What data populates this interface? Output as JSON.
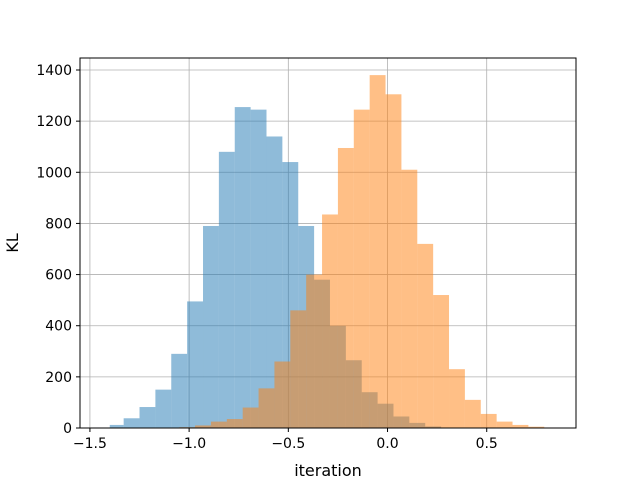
{
  "chart_data": {
    "type": "histogram",
    "title": "",
    "xlabel": "iteration",
    "ylabel": "KL",
    "xlim": [
      -1.55,
      0.95
    ],
    "ylim": [
      0,
      1400
    ],
    "xticks": [
      -1.5,
      -1.0,
      -0.5,
      0.0,
      0.5
    ],
    "xtick_labels": [
      "−1.5",
      "−1.0",
      "−0.5",
      "0.0",
      "0.5"
    ],
    "yticks": [
      0,
      200,
      400,
      600,
      800,
      1000,
      1200,
      1400
    ],
    "ytick_labels": [
      "0",
      "200",
      "400",
      "600",
      "800",
      "1000",
      "1200",
      "1400"
    ],
    "grid": true,
    "legend": "none",
    "series": [
      {
        "color": "#1f77b4",
        "alpha": 0.5,
        "bins": [
          {
            "x0": -1.48,
            "x1": -1.4,
            "value": 2
          },
          {
            "x0": -1.4,
            "x1": -1.33,
            "value": 12
          },
          {
            "x0": -1.33,
            "x1": -1.25,
            "value": 38
          },
          {
            "x0": -1.25,
            "x1": -1.17,
            "value": 82
          },
          {
            "x0": -1.17,
            "x1": -1.09,
            "value": 150
          },
          {
            "x0": -1.09,
            "x1": -1.01,
            "value": 290
          },
          {
            "x0": -1.01,
            "x1": -0.93,
            "value": 495
          },
          {
            "x0": -0.93,
            "x1": -0.85,
            "value": 790
          },
          {
            "x0": -0.85,
            "x1": -0.77,
            "value": 1080
          },
          {
            "x0": -0.77,
            "x1": -0.69,
            "value": 1255
          },
          {
            "x0": -0.69,
            "x1": -0.61,
            "value": 1245
          },
          {
            "x0": -0.61,
            "x1": -0.53,
            "value": 1140
          },
          {
            "x0": -0.53,
            "x1": -0.45,
            "value": 1040
          },
          {
            "x0": -0.45,
            "x1": -0.37,
            "value": 790
          },
          {
            "x0": -0.37,
            "x1": -0.29,
            "value": 580
          },
          {
            "x0": -0.29,
            "x1": -0.21,
            "value": 400
          },
          {
            "x0": -0.21,
            "x1": -0.13,
            "value": 265
          },
          {
            "x0": -0.13,
            "x1": -0.05,
            "value": 140
          },
          {
            "x0": -0.05,
            "x1": 0.03,
            "value": 95
          },
          {
            "x0": 0.03,
            "x1": 0.11,
            "value": 45
          },
          {
            "x0": 0.11,
            "x1": 0.19,
            "value": 20
          },
          {
            "x0": 0.19,
            "x1": 0.27,
            "value": 6
          }
        ]
      },
      {
        "color": "#ff7f0e",
        "alpha": 0.5,
        "bins": [
          {
            "x0": -1.05,
            "x1": -0.97,
            "value": 3
          },
          {
            "x0": -0.97,
            "x1": -0.89,
            "value": 10
          },
          {
            "x0": -0.89,
            "x1": -0.81,
            "value": 25
          },
          {
            "x0": -0.81,
            "x1": -0.73,
            "value": 35
          },
          {
            "x0": -0.73,
            "x1": -0.65,
            "value": 80
          },
          {
            "x0": -0.65,
            "x1": -0.57,
            "value": 155
          },
          {
            "x0": -0.57,
            "x1": -0.49,
            "value": 260
          },
          {
            "x0": -0.49,
            "x1": -0.41,
            "value": 460
          },
          {
            "x0": -0.41,
            "x1": -0.33,
            "value": 600
          },
          {
            "x0": -0.33,
            "x1": -0.25,
            "value": 835
          },
          {
            "x0": -0.25,
            "x1": -0.17,
            "value": 1095
          },
          {
            "x0": -0.17,
            "x1": -0.09,
            "value": 1245
          },
          {
            "x0": -0.09,
            "x1": -0.01,
            "value": 1380
          },
          {
            "x0": -0.01,
            "x1": 0.07,
            "value": 1305
          },
          {
            "x0": 0.07,
            "x1": 0.15,
            "value": 1010
          },
          {
            "x0": 0.15,
            "x1": 0.23,
            "value": 720
          },
          {
            "x0": 0.23,
            "x1": 0.31,
            "value": 520
          },
          {
            "x0": 0.31,
            "x1": 0.39,
            "value": 230
          },
          {
            "x0": 0.39,
            "x1": 0.47,
            "value": 110
          },
          {
            "x0": 0.47,
            "x1": 0.55,
            "value": 55
          },
          {
            "x0": 0.55,
            "x1": 0.63,
            "value": 25
          },
          {
            "x0": 0.63,
            "x1": 0.71,
            "value": 12
          },
          {
            "x0": 0.71,
            "x1": 0.79,
            "value": 5
          },
          {
            "x0": 0.79,
            "x1": 0.87,
            "value": 2
          }
        ]
      }
    ]
  }
}
